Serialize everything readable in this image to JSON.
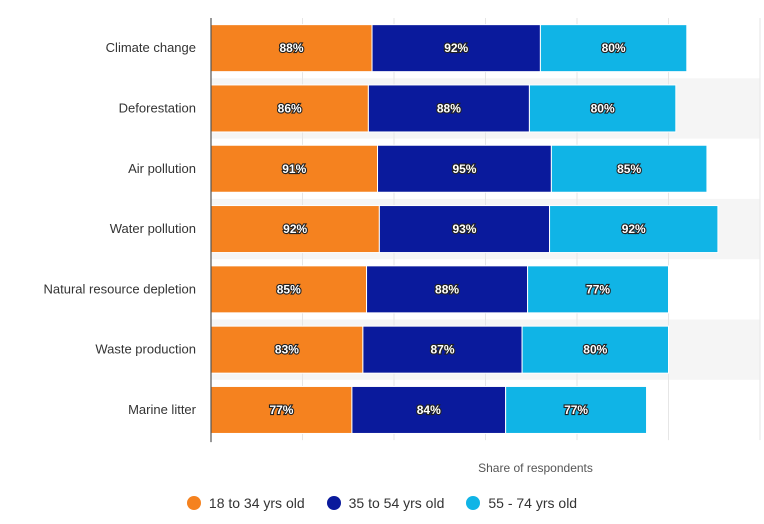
{
  "chart_data": {
    "type": "bar",
    "orientation": "horizontal",
    "stacked": true,
    "title": "",
    "xlabel": "Share of respondents",
    "ylabel": "",
    "categories": [
      "Climate change",
      "Deforestation",
      "Air pollution",
      "Water pollution",
      "Natural resource depletion",
      "Waste production",
      "Marine litter"
    ],
    "series": [
      {
        "name": "18 to 34 yrs old",
        "color": "#f5821f",
        "values": [
          88,
          86,
          91,
          92,
          85,
          83,
          77
        ],
        "labels": [
          "88%",
          "86%",
          "91%",
          "92%",
          "85%",
          "83%",
          "77%"
        ]
      },
      {
        "name": "35 to 54 yrs old",
        "color": "#0a1a9c",
        "values": [
          92,
          88,
          95,
          93,
          88,
          87,
          84
        ],
        "labels": [
          "92%",
          "88%",
          "95%",
          "93%",
          "88%",
          "87%",
          "84%"
        ]
      },
      {
        "name": "55 - 74 yrs old",
        "color": "#10b4e6",
        "values": [
          80,
          80,
          85,
          92,
          77,
          80,
          77
        ],
        "labels": [
          "80%",
          "80%",
          "85%",
          "92%",
          "77%",
          "80%",
          "77%"
        ]
      }
    ],
    "xlim": [
      0,
      300
    ],
    "grid": true,
    "legend_position": "bottom"
  }
}
